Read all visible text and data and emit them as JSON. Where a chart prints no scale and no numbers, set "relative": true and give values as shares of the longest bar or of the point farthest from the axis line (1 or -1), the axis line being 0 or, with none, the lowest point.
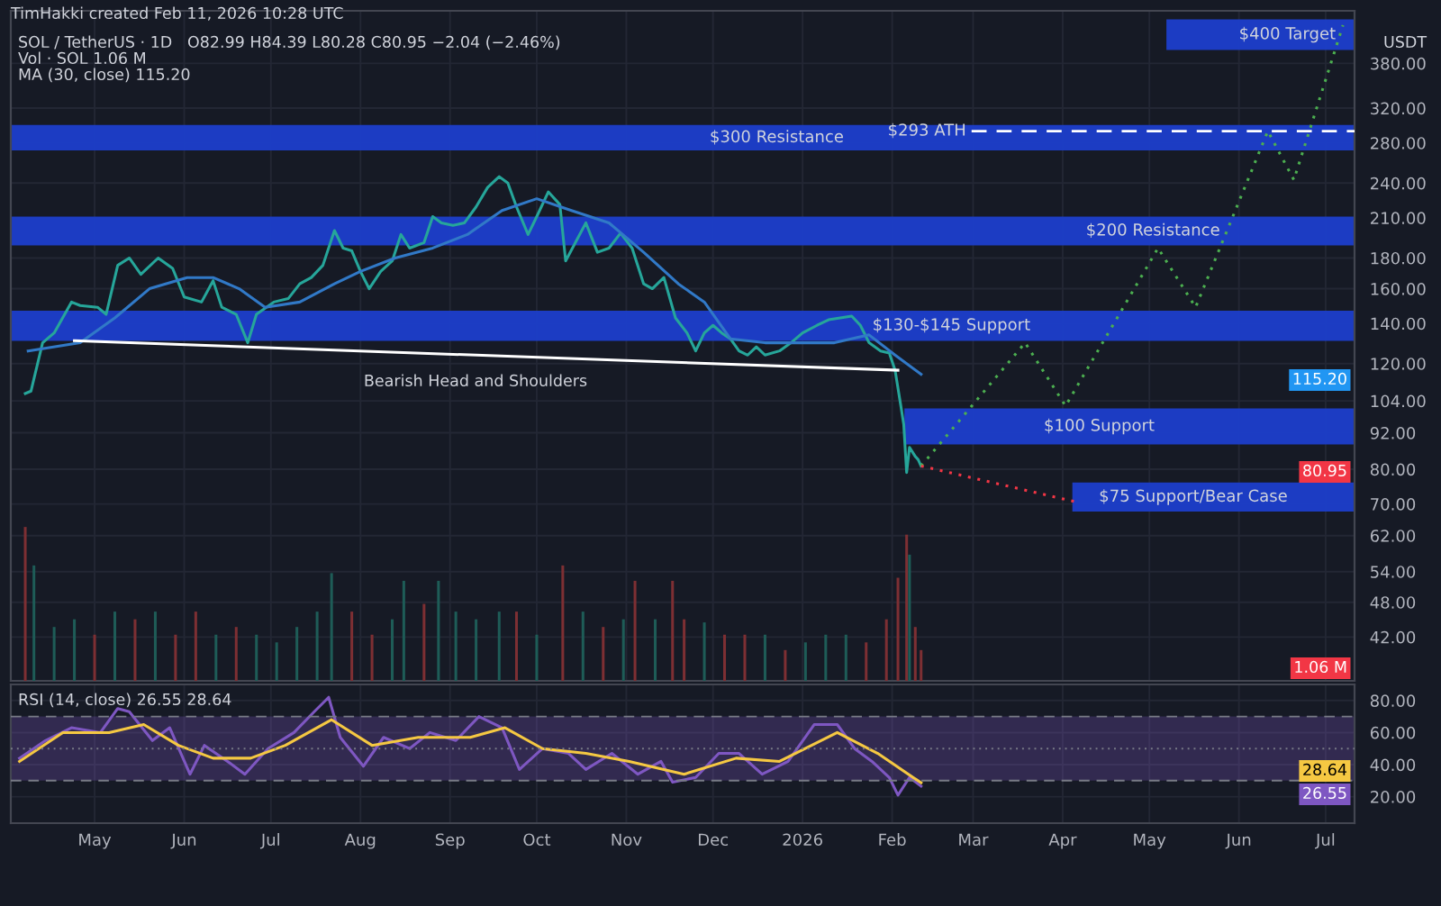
{
  "chart_data": [
    {
      "type": "line",
      "log": true,
      "grid": true,
      "tick_labels": "y",
      "xlim": [
        "2025-04-02",
        "2026-07-11"
      ],
      "xticks": [
        {
          "value": "2025-05-01",
          "label": null
        },
        {
          "value": "2025-06-01",
          "label": null
        },
        {
          "value": "2025-07-01",
          "label": null
        },
        {
          "value": "2025-08-01",
          "label": null
        },
        {
          "value": "2025-09-01",
          "label": null
        },
        {
          "value": "2025-10-01",
          "label": null
        },
        {
          "value": "2025-11-01",
          "label": null
        },
        {
          "value": "2025-12-01",
          "label": null
        },
        {
          "value": "2026-01-01",
          "label": null
        },
        {
          "value": "2026-02-01",
          "label": null
        },
        {
          "value": "2026-03-01",
          "label": null
        },
        {
          "value": "2026-04-01",
          "label": null
        },
        {
          "value": "2026-05-01",
          "label": null
        },
        {
          "value": "2026-06-01",
          "label": null
        },
        {
          "value": "2026-07-01",
          "label": null
        }
      ],
      "ylim": [
        35.5,
        465
      ],
      "yticks": [
        {
          "value": 42,
          "label": "42.00"
        },
        {
          "value": 48,
          "label": "48.00"
        },
        {
          "value": 54,
          "label": "54.00"
        },
        {
          "value": 62,
          "label": "62.00"
        },
        {
          "value": 70,
          "label": "70.00"
        },
        {
          "value": 80,
          "label": "80.00"
        },
        {
          "value": 92,
          "label": "92.00"
        },
        {
          "value": 104,
          "label": "104.00"
        },
        {
          "value": 120,
          "label": "120.00"
        },
        {
          "value": 140,
          "label": "140.00"
        },
        {
          "value": 160,
          "label": "160.00"
        },
        {
          "value": 180,
          "label": "180.00"
        },
        {
          "value": 210,
          "label": "210.00"
        },
        {
          "value": 240,
          "label": "240.00"
        },
        {
          "value": 280,
          "label": "280.00"
        },
        {
          "value": 320,
          "label": "320.00"
        },
        {
          "value": 380,
          "label": "380.00"
        }
      ],
      "series": [
        {
          "color": "#26a69a",
          "x": [
            "2025-04-07",
            "2025-04-09",
            "2025-04-13",
            "2025-04-17",
            "2025-04-23",
            "2025-04-26",
            "2025-05-02",
            "2025-05-05",
            "2025-05-09",
            "2025-05-13",
            "2025-05-17",
            "2025-05-23",
            "2025-05-28",
            "2025-06-01",
            "2025-06-07",
            "2025-06-11",
            "2025-06-14",
            "2025-06-19",
            "2025-06-23",
            "2025-06-26",
            "2025-07-02",
            "2025-07-07",
            "2025-07-11",
            "2025-07-15",
            "2025-07-19",
            "2025-07-23",
            "2025-07-26",
            "2025-07-29",
            "2025-08-01",
            "2025-08-04",
            "2025-08-08",
            "2025-08-12",
            "2025-08-15",
            "2025-08-18",
            "2025-08-23",
            "2025-08-26",
            "2025-08-29",
            "2025-09-02",
            "2025-09-06",
            "2025-09-10",
            "2025-09-14",
            "2025-09-18",
            "2025-09-21",
            "2025-09-24",
            "2025-09-28",
            "2025-10-01",
            "2025-10-05",
            "2025-10-09",
            "2025-10-11",
            "2025-10-18",
            "2025-10-22",
            "2025-10-26",
            "2025-10-30",
            "2025-11-03",
            "2025-11-07",
            "2025-11-10",
            "2025-11-14",
            "2025-11-18",
            "2025-11-22",
            "2025-11-25",
            "2025-11-28",
            "2025-12-01",
            "2025-12-04",
            "2025-12-07",
            "2025-12-10",
            "2025-12-13",
            "2025-12-16",
            "2025-12-19",
            "2025-12-24",
            "2025-12-28",
            "2026-01-01",
            "2026-01-06",
            "2026-01-10",
            "2026-01-18",
            "2026-01-21",
            "2026-01-24",
            "2026-01-28",
            "2026-01-31",
            "2026-02-02",
            "2026-02-04",
            "2026-02-05",
            "2026-02-06",
            "2026-02-07",
            "2026-02-09",
            "2026-02-10",
            "2026-02-11"
          ],
          "values": [
            107,
            108,
            130,
            135,
            152,
            150,
            149,
            145,
            175,
            180,
            169,
            180,
            173,
            155,
            152,
            165,
            149,
            145,
            130,
            145,
            152,
            154,
            163,
            167,
            175,
            200,
            187,
            185,
            171,
            160,
            171,
            178,
            197,
            187,
            191,
            211,
            206,
            204,
            206,
            219,
            236,
            246,
            240,
            219,
            197,
            211,
            232,
            221,
            178,
            206,
            184,
            187,
            198,
            187,
            163,
            160,
            167,
            143,
            135,
            126,
            135,
            139,
            135,
            132,
            126,
            124,
            128,
            124,
            126,
            130,
            135,
            139,
            142,
            144,
            139,
            130,
            126,
            125,
            117,
            102,
            95,
            79,
            87,
            84,
            82.99,
            80.95
          ]
        },
        {
          "color": "#3179c7",
          "x": [
            "2025-04-08",
            "2025-04-26",
            "2025-05-08",
            "2025-05-20",
            "2025-06-02",
            "2025-06-11",
            "2025-06-20",
            "2025-06-29",
            "2025-07-11",
            "2025-07-23",
            "2025-08-01",
            "2025-08-13",
            "2025-08-26",
            "2025-09-07",
            "2025-09-19",
            "2025-10-01",
            "2025-10-13",
            "2025-10-26",
            "2025-11-07",
            "2025-11-19",
            "2025-11-28",
            "2025-12-07",
            "2025-12-19",
            "2025-12-31",
            "2026-01-12",
            "2026-01-24",
            "2026-02-02",
            "2026-02-11"
          ],
          "values": [
            126,
            130,
            143,
            160,
            167,
            167,
            160,
            149,
            152,
            163,
            171,
            180,
            187,
            197,
            216,
            226,
            216,
            206,
            184,
            163,
            152,
            132,
            130,
            130,
            130,
            134,
            124,
            115.2
          ]
        },
        {
          "color": "#ffffff",
          "x": [
            "2025-04-24",
            "2026-02-03"
          ],
          "values": [
            131,
            117
          ]
        },
        {
          "color": "#4caf50",
          "line_style": "dotted",
          "x": [
            "2026-02-11",
            "2026-03-19",
            "2026-04-02",
            "2026-05-04",
            "2026-05-17",
            "2026-06-11",
            "2026-06-20",
            "2026-07-07"
          ],
          "values": [
            81,
            130,
            102,
            187,
            149,
            293,
            243,
            440
          ]
        },
        {
          "color": "#f23645",
          "line_style": "dotted",
          "x": [
            "2026-02-11",
            "2026-04-06"
          ],
          "values": [
            81,
            70.5
          ]
        }
      ],
      "bands": [
        {
          "axis": "y",
          "from": 272,
          "to": 300,
          "label": "$300 Resistance",
          "color": "#1c3ecb"
        },
        {
          "axis": "y",
          "from": 189,
          "to": 211,
          "label": "$200 Resistance",
          "color": "#1c3ecb"
        },
        {
          "axis": "y",
          "from": 131,
          "to": 147,
          "label": "$130-$145 Support",
          "color": "#1c3ecb"
        },
        {
          "axis": "y",
          "from": 88,
          "to": 101,
          "label": "$100 Support",
          "color": "#1c3ecb"
        },
        {
          "axis": "y",
          "from": 68,
          "to": 76,
          "label": "$75 Support/Bear Case",
          "color": "#1c3ecb"
        },
        {
          "axis": "y",
          "from": 400,
          "to": 450,
          "label": "$400 Target",
          "color": "#1c3ecb"
        }
      ],
      "ref_lines": [
        {
          "axis": "y",
          "value": 293,
          "label": "$293 ATH",
          "color": "#ffffff",
          "line_style": "dashed"
        }
      ],
      "annotations": [
        "TimHakki created Feb 11, 2026 10:28 UTC",
        "SOL / TetherUS · 1D   O82.99 H84.39 L80.28 C80.95 −2.04 (−2.46%)",
        "Vol · SOL 1.06 M",
        "MA (30, close) 115.20",
        "USDT",
        "115.20",
        "80.95",
        "1.06 M",
        "Bearish Head and Shoulders"
      ]
    },
    {
      "type": "bar",
      "relative": true,
      "tick_labels": false,
      "xlim": [
        "2025-04-02",
        "2026-07-11"
      ],
      "x": [
        "2025-04-07",
        "2025-04-10",
        "2025-04-17",
        "2025-04-24",
        "2025-05-01",
        "2025-05-08",
        "2025-05-15",
        "2025-05-22",
        "2025-05-29",
        "2025-06-05",
        "2025-06-12",
        "2025-06-19",
        "2025-06-26",
        "2025-07-03",
        "2025-07-10",
        "2025-07-17",
        "2025-07-22",
        "2025-07-29",
        "2025-08-05",
        "2025-08-12",
        "2025-08-16",
        "2025-08-23",
        "2025-08-28",
        "2025-09-03",
        "2025-09-10",
        "2025-09-18",
        "2025-09-24",
        "2025-10-01",
        "2025-10-10",
        "2025-10-17",
        "2025-10-24",
        "2025-10-31",
        "2025-11-04",
        "2025-11-11",
        "2025-11-17",
        "2025-11-21",
        "2025-11-28",
        "2025-12-05",
        "2025-12-12",
        "2025-12-19",
        "2025-12-26",
        "2026-01-02",
        "2026-01-09",
        "2026-01-16",
        "2026-01-23",
        "2026-01-30",
        "2026-02-03",
        "2026-02-06",
        "2026-02-07",
        "2026-02-09",
        "2026-02-11"
      ],
      "values": [
        1.0,
        0.75,
        0.35,
        0.4,
        0.3,
        0.45,
        0.4,
        0.45,
        0.3,
        0.45,
        0.3,
        0.35,
        0.3,
        0.25,
        0.35,
        0.45,
        0.7,
        0.45,
        0.3,
        0.4,
        0.65,
        0.5,
        0.65,
        0.45,
        0.4,
        0.45,
        0.45,
        0.3,
        0.75,
        0.45,
        0.35,
        0.4,
        0.65,
        0.4,
        0.65,
        0.4,
        0.38,
        0.3,
        0.3,
        0.3,
        0.2,
        0.25,
        0.3,
        0.3,
        0.25,
        0.4,
        0.67,
        0.95,
        0.82,
        0.35,
        0.2
      ],
      "colors": [
        "#7d2f33",
        "#1e5c57",
        "#1e5c57",
        "#1e5c57",
        "#7d2f33",
        "#1e5c57",
        "#7d2f33",
        "#1e5c57",
        "#7d2f33",
        "#7d2f33",
        "#1e5c57",
        "#7d2f33",
        "#1e5c57",
        "#1e5c57",
        "#1e5c57",
        "#1e5c57",
        "#1e5c57",
        "#7d2f33",
        "#7d2f33",
        "#1e5c57",
        "#1e5c57",
        "#7d2f33",
        "#1e5c57",
        "#1e5c57",
        "#1e5c57",
        "#1e5c57",
        "#7d2f33",
        "#1e5c57",
        "#7d2f33",
        "#1e5c57",
        "#7d2f33",
        "#1e5c57",
        "#7d2f33",
        "#1e5c57",
        "#7d2f33",
        "#7d2f33",
        "#1e5c57",
        "#7d2f33",
        "#7d2f33",
        "#1e5c57",
        "#7d2f33",
        "#1e5c57",
        "#1e5c57",
        "#1e5c57",
        "#7d2f33",
        "#7d2f33",
        "#7d2f33",
        "#7d2f33",
        "#1e5c57",
        "#7d2f33",
        "#7d2f33"
      ]
    },
    {
      "type": "line",
      "grid": true,
      "xlim": [
        "2025-04-02",
        "2026-07-11"
      ],
      "xticks": [
        {
          "value": "2025-05-01",
          "label": "May"
        },
        {
          "value": "2025-06-01",
          "label": "Jun"
        },
        {
          "value": "2025-07-01",
          "label": "Jul"
        },
        {
          "value": "2025-08-01",
          "label": "Aug"
        },
        {
          "value": "2025-09-01",
          "label": "Sep"
        },
        {
          "value": "2025-10-01",
          "label": "Oct"
        },
        {
          "value": "2025-11-01",
          "label": "Nov"
        },
        {
          "value": "2025-12-01",
          "label": "Dec"
        },
        {
          "value": "2026-01-01",
          "label": "2026"
        },
        {
          "value": "2026-02-01",
          "label": "Feb"
        },
        {
          "value": "2026-03-01",
          "label": "Mar"
        },
        {
          "value": "2026-04-01",
          "label": "Apr"
        },
        {
          "value": "2026-05-01",
          "label": "May"
        },
        {
          "value": "2026-06-01",
          "label": "Jun"
        },
        {
          "value": "2026-07-01",
          "label": "Jul"
        }
      ],
      "ylim": [
        3.5,
        90
      ],
      "yticks": [
        {
          "value": 20,
          "label": "20.00"
        },
        {
          "value": 40,
          "label": "40.00"
        },
        {
          "value": 60,
          "label": "60.00"
        },
        {
          "value": 80,
          "label": "80.00"
        }
      ],
      "series": [
        {
          "color": "#7e57c2",
          "x": [
            "2025-04-05",
            "2025-04-14",
            "2025-04-23",
            "2025-05-03",
            "2025-05-09",
            "2025-05-13",
            "2025-05-21",
            "2025-05-27",
            "2025-06-03",
            "2025-06-08",
            "2025-06-16",
            "2025-06-22",
            "2025-06-30",
            "2025-07-09",
            "2025-07-16",
            "2025-07-21",
            "2025-07-25",
            "2025-08-02",
            "2025-08-09",
            "2025-08-18",
            "2025-08-25",
            "2025-09-03",
            "2025-09-11",
            "2025-09-19",
            "2025-09-25",
            "2025-10-03",
            "2025-10-12",
            "2025-10-18",
            "2025-10-27",
            "2025-11-05",
            "2025-11-13",
            "2025-11-17",
            "2025-11-25",
            "2025-12-03",
            "2025-12-10",
            "2025-12-18",
            "2025-12-27",
            "2026-01-05",
            "2026-01-13",
            "2026-01-19",
            "2026-01-25",
            "2026-01-31",
            "2026-02-03",
            "2026-02-07",
            "2026-02-11"
          ],
          "values": [
            44,
            55,
            63,
            60,
            75,
            73,
            55,
            63,
            34,
            52,
            42,
            34,
            50,
            60,
            73,
            82,
            57,
            39,
            57,
            50,
            60,
            55,
            70,
            63,
            37,
            50,
            47,
            37,
            47,
            34,
            42,
            29,
            32,
            47,
            47,
            34,
            42,
            65,
            65,
            50,
            42,
            32,
            21,
            32,
            26.55
          ]
        },
        {
          "color": "#f5c842",
          "x": [
            "2025-04-05",
            "2025-04-20",
            "2025-05-06",
            "2025-05-18",
            "2025-05-30",
            "2025-06-11",
            "2025-06-24",
            "2025-07-06",
            "2025-07-22",
            "2025-08-05",
            "2025-08-21",
            "2025-09-08",
            "2025-09-20",
            "2025-10-03",
            "2025-10-18",
            "2025-11-02",
            "2025-11-21",
            "2025-12-09",
            "2025-12-24",
            "2026-01-13",
            "2026-01-27",
            "2026-02-11"
          ],
          "values": [
            42,
            60,
            60,
            65,
            52,
            44,
            44,
            52,
            68,
            52,
            57,
            57,
            63,
            50,
            47,
            42,
            34,
            44,
            42,
            60,
            47,
            28.64
          ]
        }
      ],
      "bands": [
        {
          "axis": "y",
          "from": 30,
          "to": 70,
          "color": "#7e57c2"
        }
      ],
      "ref_lines": [
        {
          "axis": "y",
          "value": 70,
          "line_style": "dashed",
          "color": "#787b86"
        },
        {
          "axis": "y",
          "value": 50,
          "line_style": "dotted",
          "color": "#787b86"
        },
        {
          "axis": "y",
          "value": 30,
          "line_style": "dashed",
          "color": "#787b86"
        }
      ],
      "annotations": [
        "RSI (14, close) 26.55 28.64",
        "28.64",
        "26.55"
      ]
    }
  ]
}
